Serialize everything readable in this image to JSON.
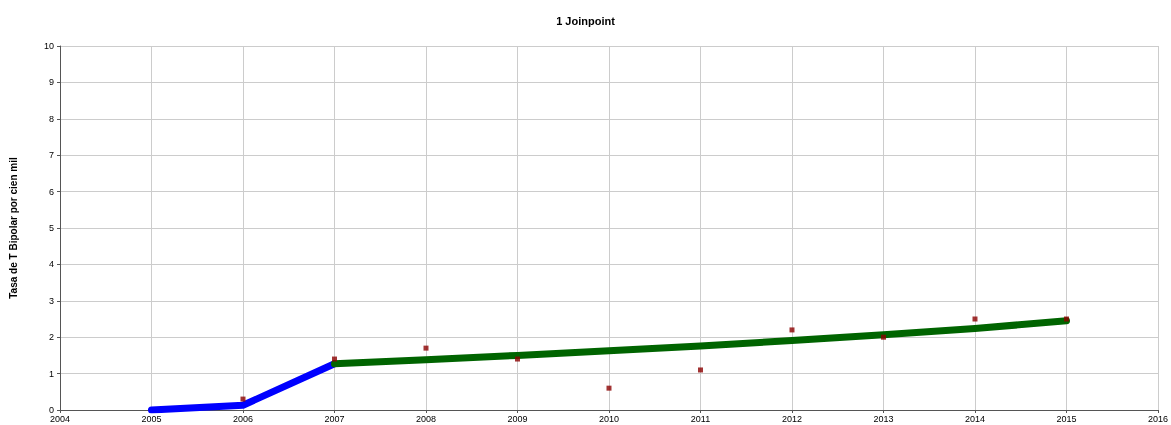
{
  "chart_data": {
    "type": "line",
    "title": "1 Joinpoint",
    "ylabel": "Tasa de T Bipolar por cien mil",
    "xlim": [
      2004,
      2016
    ],
    "xticks": [
      2004,
      2005,
      2006,
      2007,
      2008,
      2009,
      2010,
      2011,
      2012,
      2013,
      2014,
      2015,
      2016
    ],
    "ylim": [
      0,
      10
    ],
    "yticks": [
      0,
      1,
      2,
      3,
      4,
      5,
      6,
      7,
      8,
      9,
      10
    ],
    "grid": true,
    "series": [
      {
        "color": "#0000ff",
        "x": [
          2005,
          2006,
          2007
        ],
        "values": [
          0,
          0.13,
          1.27
        ],
        "marker": "none"
      },
      {
        "color": "#006400",
        "x": [
          2007,
          2008,
          2009,
          2010,
          2011,
          2012,
          2013,
          2014,
          2015
        ],
        "values": [
          1.27,
          1.38,
          1.5,
          1.63,
          1.76,
          1.91,
          2.07,
          2.24,
          2.45
        ],
        "marker": "none"
      },
      {
        "type": "scatter",
        "color": "#8b0000",
        "x": [
          2006,
          2007,
          2008,
          2009,
          2010,
          2011,
          2012,
          2013,
          2014,
          2015
        ],
        "values": [
          0.3,
          1.4,
          1.7,
          1.4,
          0.6,
          1.1,
          2.2,
          2.0,
          2.5,
          2.5
        ],
        "marker": "square"
      }
    ]
  }
}
